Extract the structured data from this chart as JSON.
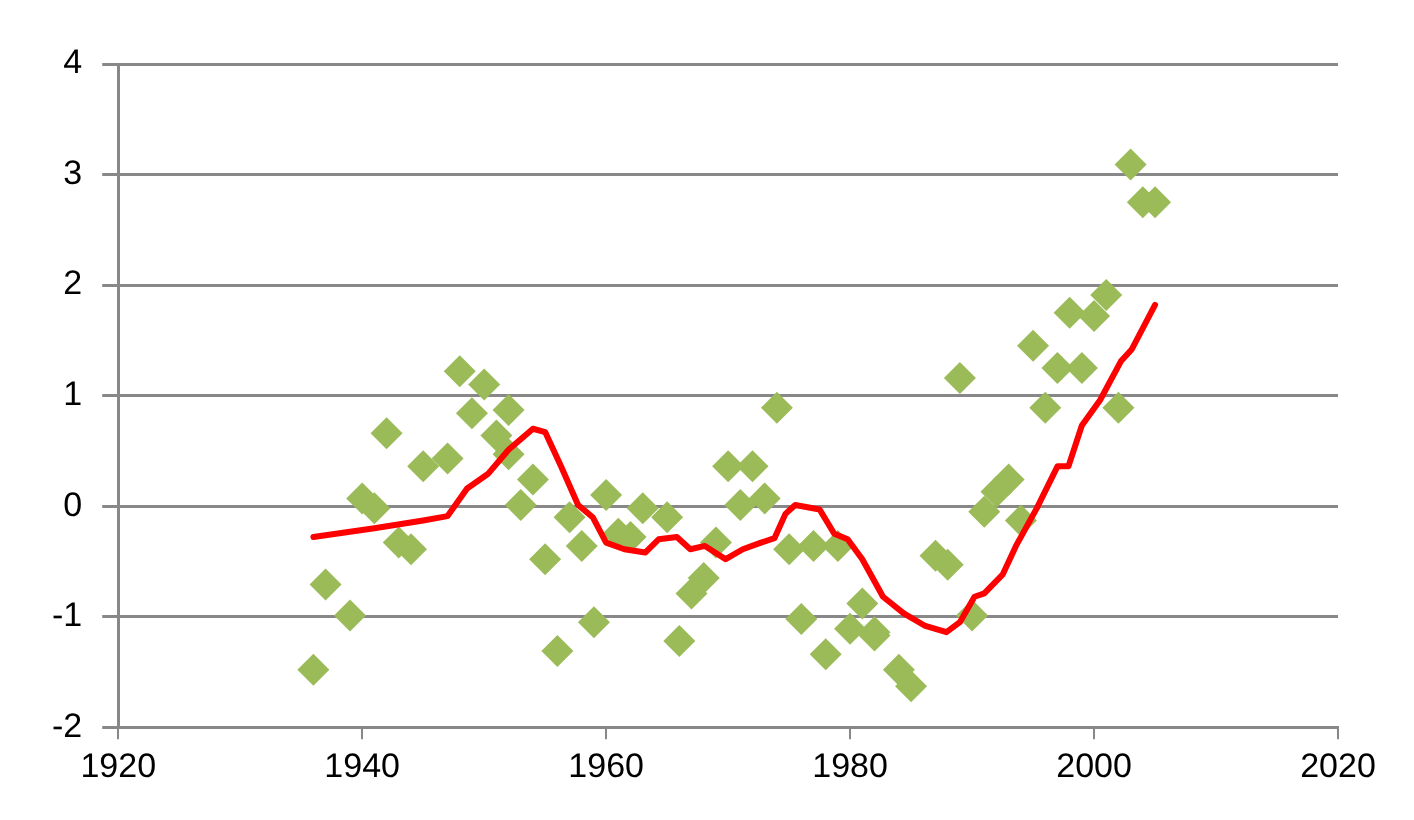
{
  "chart_data": {
    "type": "scatter",
    "xlim": [
      1920,
      2020
    ],
    "xticks": [
      1920,
      1940,
      1960,
      1980,
      2000,
      2020
    ],
    "ylim": [
      -2,
      4
    ],
    "yticks": [
      -2,
      -1,
      0,
      1,
      2,
      3,
      4
    ],
    "grid": "y",
    "legend": false,
    "series": [
      {
        "type": "scatter",
        "marker": "diamond",
        "color": "#9bbb59",
        "x": [
          1936,
          1937,
          1939,
          1940,
          1941,
          1942,
          1943,
          1944,
          1945,
          1947,
          1948,
          1949,
          1950,
          1951,
          1952,
          1952,
          1953,
          1954,
          1955,
          1956,
          1957,
          1958,
          1959,
          1960,
          1961,
          1962,
          1963,
          1965,
          1966,
          1967,
          1968,
          1969,
          1970,
          1971,
          1972,
          1973,
          1974,
          1975,
          1976,
          1977,
          1978,
          1979,
          1980,
          1981,
          1982,
          1982,
          1984,
          1985,
          1987,
          1988,
          1989,
          1990,
          1991,
          1992,
          1993,
          1994,
          1995,
          1996,
          1997,
          1998,
          1999,
          2000,
          2001,
          2002,
          2003,
          2004,
          2005
        ],
        "values": [
          -1.48,
          -0.71,
          -0.99,
          0.07,
          -0.02,
          0.66,
          -0.33,
          -0.39,
          0.36,
          0.43,
          1.22,
          0.84,
          1.1,
          0.64,
          0.87,
          0.47,
          0.01,
          0.24,
          -0.48,
          -1.31,
          -0.1,
          -0.36,
          -1.05,
          0.1,
          -0.25,
          -0.28,
          -0.02,
          -0.1,
          -1.22,
          -0.79,
          -0.65,
          -0.33,
          0.36,
          0.01,
          0.36,
          0.07,
          0.89,
          -0.39,
          -1.02,
          -0.36,
          -1.34,
          -0.36,
          -1.11,
          -0.88,
          -1.14,
          -1.17,
          -1.48,
          -1.63,
          -0.45,
          -0.53,
          1.16,
          -0.99,
          -0.05,
          0.13,
          0.24,
          -0.13,
          1.45,
          0.89,
          1.25,
          1.75,
          1.25,
          1.72,
          1.91,
          0.89,
          3.09,
          2.75,
          2.75
        ]
      },
      {
        "type": "line",
        "marker": "none",
        "line_style": "solid",
        "color": "#ff0000",
        "x": [
          1936,
          1941,
          1945,
          1947,
          1948.6,
          1950.3,
          1952,
          1954,
          1955,
          1956.3,
          1957.7,
          1958.9,
          1960,
          1961.5,
          1963.2,
          1964.3,
          1965.8,
          1966.9,
          1968.1,
          1969.8,
          1971.2,
          1972.7,
          1973.8,
          1974.7,
          1975.5,
          1977.5,
          1978.7,
          1979.8,
          1981,
          1982.7,
          1984.4,
          1986.1,
          1987.9,
          1989,
          1990.2,
          1991,
          1992.5,
          1993.6,
          1995.3,
          1997,
          1997.9,
          1999,
          2000.5,
          2002.2,
          2003.1,
          2005
        ],
        "values": [
          -0.28,
          -0.2,
          -0.13,
          -0.09,
          0.16,
          0.29,
          0.51,
          0.7,
          0.67,
          0.36,
          0.01,
          -0.1,
          -0.33,
          -0.39,
          -0.42,
          -0.3,
          -0.28,
          -0.39,
          -0.36,
          -0.48,
          -0.39,
          -0.33,
          -0.29,
          -0.07,
          0.01,
          -0.03,
          -0.25,
          -0.3,
          -0.48,
          -0.82,
          -0.97,
          -1.08,
          -1.14,
          -1.05,
          -0.82,
          -0.79,
          -0.62,
          -0.36,
          -0.02,
          0.36,
          0.36,
          0.73,
          0.96,
          1.31,
          1.42,
          1.82
        ]
      }
    ]
  }
}
